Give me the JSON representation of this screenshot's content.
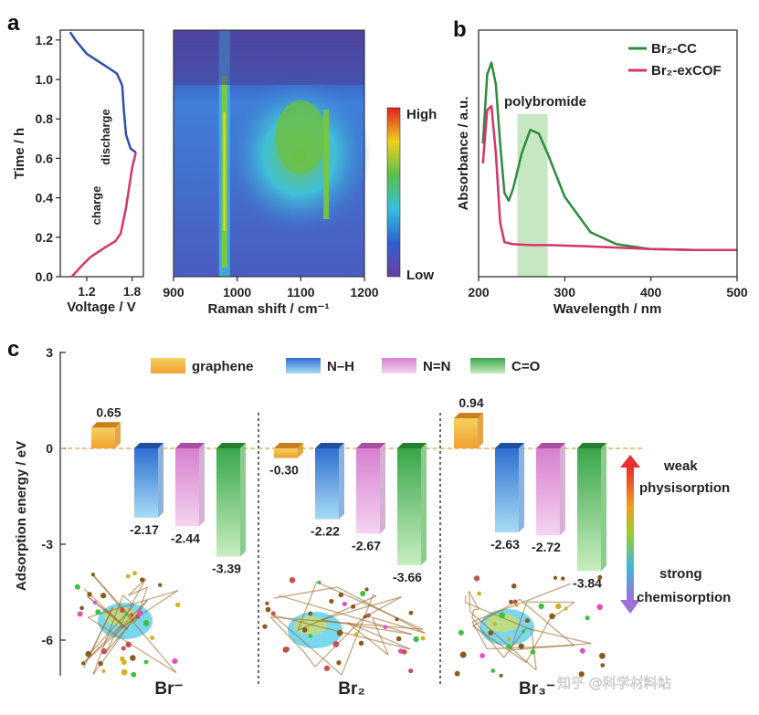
{
  "panel_labels": {
    "a": "a",
    "b": "b",
    "c": "c"
  },
  "watermark": "知乎 @科学材料站",
  "chart_data": [
    {
      "type": "line",
      "panel": "a-left",
      "xlabel": "Voltage / V",
      "ylabel": "Time / h",
      "xticks": [
        "1.2",
        "1.8"
      ],
      "yticks": [
        "0.0",
        "0.2",
        "0.4",
        "0.6",
        "0.8",
        "1.0",
        "1.2"
      ],
      "ylim": [
        0,
        1.25
      ],
      "xlim": [
        0.85,
        1.95
      ],
      "annotations": [
        "discharge",
        "charge"
      ],
      "series": [
        {
          "name": "charge",
          "color": "#d6336c",
          "x": [
            1.0,
            1.05,
            1.12,
            1.25,
            1.45,
            1.58,
            1.65,
            1.72,
            1.8,
            1.85
          ],
          "y": [
            0.0,
            0.02,
            0.05,
            0.1,
            0.15,
            0.18,
            0.22,
            0.35,
            0.55,
            0.63
          ]
        },
        {
          "name": "discharge",
          "color": "#2f4fa8",
          "x": [
            1.85,
            1.78,
            1.72,
            1.69,
            1.67,
            1.6,
            1.4,
            1.2,
            1.05,
            0.98
          ],
          "y": [
            0.63,
            0.65,
            0.72,
            0.85,
            0.97,
            1.03,
            1.08,
            1.13,
            1.2,
            1.24
          ]
        }
      ]
    },
    {
      "type": "heatmap",
      "panel": "a-right",
      "xlabel": "Raman shift / cm⁻¹",
      "xticks": [
        "900",
        "1000",
        "1100",
        "1200"
      ],
      "xlim": [
        900,
        1200
      ],
      "ylim": [
        0,
        1.25
      ],
      "colorbar": {
        "high": "High",
        "low": "Low"
      },
      "features": [
        {
          "center": 980,
          "width": 7,
          "intensity": 0.9
        },
        {
          "center": 1100,
          "width": 60,
          "intensity": 0.55
        },
        {
          "center": 1140,
          "width": 6,
          "intensity": 0.8
        }
      ]
    },
    {
      "type": "line",
      "panel": "b",
      "xlabel": "Wavelength / nm",
      "ylabel": "Absorbance / a.u.",
      "xticks": [
        "200",
        "300",
        "400",
        "500"
      ],
      "xlim": [
        200,
        500
      ],
      "annotations": [
        "polybromide"
      ],
      "highlight_range": [
        245,
        280
      ],
      "series": [
        {
          "name": "Br₂-CC",
          "color": "#2e8b3e",
          "x": [
            205,
            210,
            215,
            220,
            225,
            230,
            235,
            240,
            250,
            260,
            270,
            280,
            300,
            330,
            360,
            400,
            450,
            500
          ],
          "y": [
            0.55,
            0.9,
            0.96,
            0.85,
            0.55,
            0.3,
            0.26,
            0.32,
            0.5,
            0.62,
            0.6,
            0.5,
            0.28,
            0.1,
            0.04,
            0.015,
            0.01,
            0.01
          ]
        },
        {
          "name": "Br₂-exCOF",
          "color": "#d6336c",
          "x": [
            205,
            210,
            215,
            220,
            225,
            230,
            240,
            260,
            280,
            320,
            400,
            450,
            500
          ],
          "y": [
            0.45,
            0.72,
            0.74,
            0.5,
            0.15,
            0.05,
            0.04,
            0.035,
            0.035,
            0.03,
            0.015,
            0.01,
            0.01
          ]
        }
      ]
    },
    {
      "type": "bar",
      "panel": "c",
      "ylabel": "Adsorption energy / eV",
      "yticks": [
        "3",
        "0",
        "-3",
        "-6"
      ],
      "ylim": [
        -7.1,
        3
      ],
      "legend": [
        "graphene",
        "N–H",
        "N=N",
        "C=O"
      ],
      "colors": {
        "graphene": "#f0a030",
        "N–H": "#2f6fd0",
        "N=N": "#d77fd0",
        "C=O": "#3aa64a"
      },
      "groups": [
        {
          "label": "Br⁻",
          "values": [
            0.65,
            -2.17,
            -2.44,
            -3.39
          ],
          "labels": [
            "0.65",
            "-2.17",
            "-2.44",
            "-3.39"
          ]
        },
        {
          "label": "Br₂",
          "values": [
            -0.3,
            -2.22,
            -2.67,
            -3.66
          ],
          "labels": [
            "-0.30",
            "-2.22",
            "-2.67",
            "-3.66"
          ]
        },
        {
          "label": "Br₃⁻",
          "values": [
            0.94,
            -2.63,
            -2.72,
            -3.84
          ],
          "labels": [
            "0.94",
            "-2.63",
            "-2.72",
            "-3.84"
          ]
        }
      ],
      "scale_annotation": {
        "top": [
          "weak",
          "physisorption"
        ],
        "bottom": [
          "strong",
          "chemisorption"
        ]
      }
    }
  ]
}
